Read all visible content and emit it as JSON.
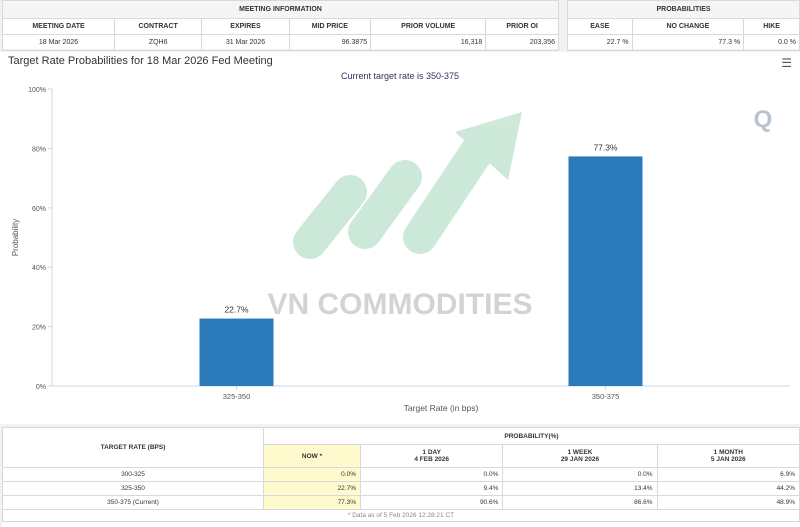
{
  "meeting_info": {
    "group_title": "MEETING INFORMATION",
    "headers": [
      "MEETING DATE",
      "CONTRACT",
      "EXPIRES",
      "MID PRICE",
      "PRIOR VOLUME",
      "PRIOR OI"
    ],
    "row": [
      "18 Mar 2026",
      "ZQH6",
      "31 Mar 2026",
      "96.3875",
      "16,318",
      "203,356"
    ]
  },
  "probabilities": {
    "group_title": "PROBABILITIES",
    "headers": [
      "EASE",
      "NO CHANGE",
      "HIKE"
    ],
    "row": [
      "22.7 %",
      "77.3 %",
      "0.0 %"
    ]
  },
  "chart": {
    "title": "Target Rate Probabilities for 18 Mar 2026 Fed Meeting",
    "menu_icon": "hamburger-menu-icon",
    "bar_color": "#2a7ab9"
  },
  "chart_data": {
    "type": "bar",
    "title": "Target Rate Probabilities for 18 Mar 2026 Fed Meeting",
    "subtitle": "Current target rate is 350-375",
    "categories": [
      "325-350",
      "350-375"
    ],
    "values": [
      22.7,
      77.3
    ],
    "data_labels": [
      "22.7%",
      "77.3%"
    ],
    "xlabel": "Target Rate (in bps)",
    "ylabel": "Probability",
    "ylim": [
      0,
      100
    ],
    "yticks": [
      "0%",
      "20%",
      "40%",
      "60%",
      "80%",
      "100%"
    ],
    "grid": false,
    "watermark": "VN COMMODITIES"
  },
  "rate_table": {
    "col_target": "TARGET RATE (BPS)",
    "col_prob": "PROBABILITY(%)",
    "sub_headers": [
      {
        "line1": "NOW *",
        "line2": ""
      },
      {
        "line1": "1 DAY",
        "line2": "4 FEB 2026"
      },
      {
        "line1": "1 WEEK",
        "line2": "29 JAN 2026"
      },
      {
        "line1": "1 MONTH",
        "line2": "5 JAN 2026"
      }
    ],
    "rows": [
      {
        "rate": "300-325",
        "now": "0.0%",
        "day": "0.0%",
        "week": "0.0%",
        "month": "6.9%"
      },
      {
        "rate": "325-350",
        "now": "22.7%",
        "day": "9.4%",
        "week": "13.4%",
        "month": "44.2%"
      },
      {
        "rate": "350-375 (Current)",
        "now": "77.3%",
        "day": "90.6%",
        "week": "86.6%",
        "month": "48.9%"
      }
    ],
    "footnote": "* Data as of 5 Feb 2026 12:28:21 CT"
  }
}
